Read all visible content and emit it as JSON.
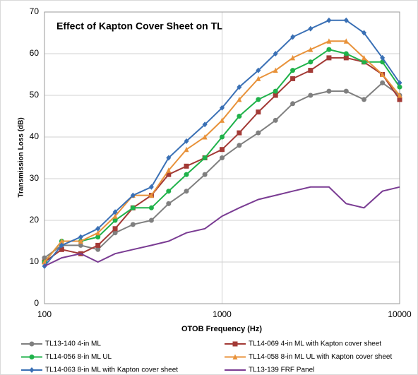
{
  "chart_data": {
    "type": "line",
    "title": "Effect of Kapton Cover Sheet on TL",
    "x_label": "OTOB Frequency (Hz)",
    "y_label": "Transmission Loss (dB)",
    "x": [
      100,
      125,
      160,
      200,
      250,
      315,
      400,
      500,
      630,
      800,
      1000,
      1250,
      1600,
      2000,
      2500,
      3150,
      4000,
      5000,
      6300,
      8000,
      10000
    ],
    "xscale": "log",
    "xlim": [
      100,
      10000
    ],
    "xticks": [
      100,
      1000,
      10000
    ],
    "ylim": [
      0,
      70
    ],
    "yticks": [
      0,
      10,
      20,
      30,
      40,
      50,
      60,
      70
    ],
    "grid": true,
    "series": [
      {
        "name": "TL13-140 4-in ML",
        "color": "#7f7f7f",
        "marker": "circle",
        "values": [
          11,
          14,
          14,
          13,
          17,
          19,
          20,
          24,
          27,
          31,
          35,
          38,
          41,
          44,
          48,
          50,
          51,
          51,
          49,
          53,
          50
        ]
      },
      {
        "name": "TL14-069 4-in ML with Kapton cover sheet",
        "color": "#a33a36",
        "marker": "square",
        "values": [
          10,
          13,
          12,
          14,
          18,
          23,
          26,
          31,
          33,
          35,
          37,
          41,
          46,
          50,
          54,
          56,
          59,
          59,
          58,
          55,
          49
        ]
      },
      {
        "name": "TL14-056 8-in ML UL",
        "color": "#1fb24a",
        "marker": "circle",
        "values": [
          10,
          15,
          15,
          16,
          20,
          23,
          23,
          27,
          31,
          35,
          40,
          45,
          49,
          51,
          56,
          58,
          61,
          60,
          58,
          58,
          52
        ]
      },
      {
        "name": "TL14-058 8-in ML UL with Kapton cover sheet",
        "color": "#e8923a",
        "marker": "triangle",
        "values": [
          10,
          15,
          15,
          17,
          21,
          26,
          26,
          32,
          37,
          40,
          44,
          49,
          54,
          56,
          59,
          61,
          63,
          63,
          59,
          55,
          50
        ]
      },
      {
        "name": "TL14-063 8-in ML with Kapton cover sheet",
        "color": "#3a70b5",
        "marker": "diamond",
        "values": [
          9,
          14,
          16,
          18,
          22,
          26,
          28,
          35,
          39,
          43,
          47,
          52,
          56,
          60,
          64,
          66,
          68,
          68,
          65,
          59,
          53
        ]
      },
      {
        "name": "TL13-139 FRF Panel",
        "color": "#7a3c93",
        "marker": "none",
        "values": [
          9,
          11,
          12,
          10,
          12,
          13,
          14,
          15,
          17,
          18,
          21,
          23,
          25,
          26,
          27,
          28,
          28,
          24,
          23,
          27,
          28
        ]
      }
    ]
  }
}
